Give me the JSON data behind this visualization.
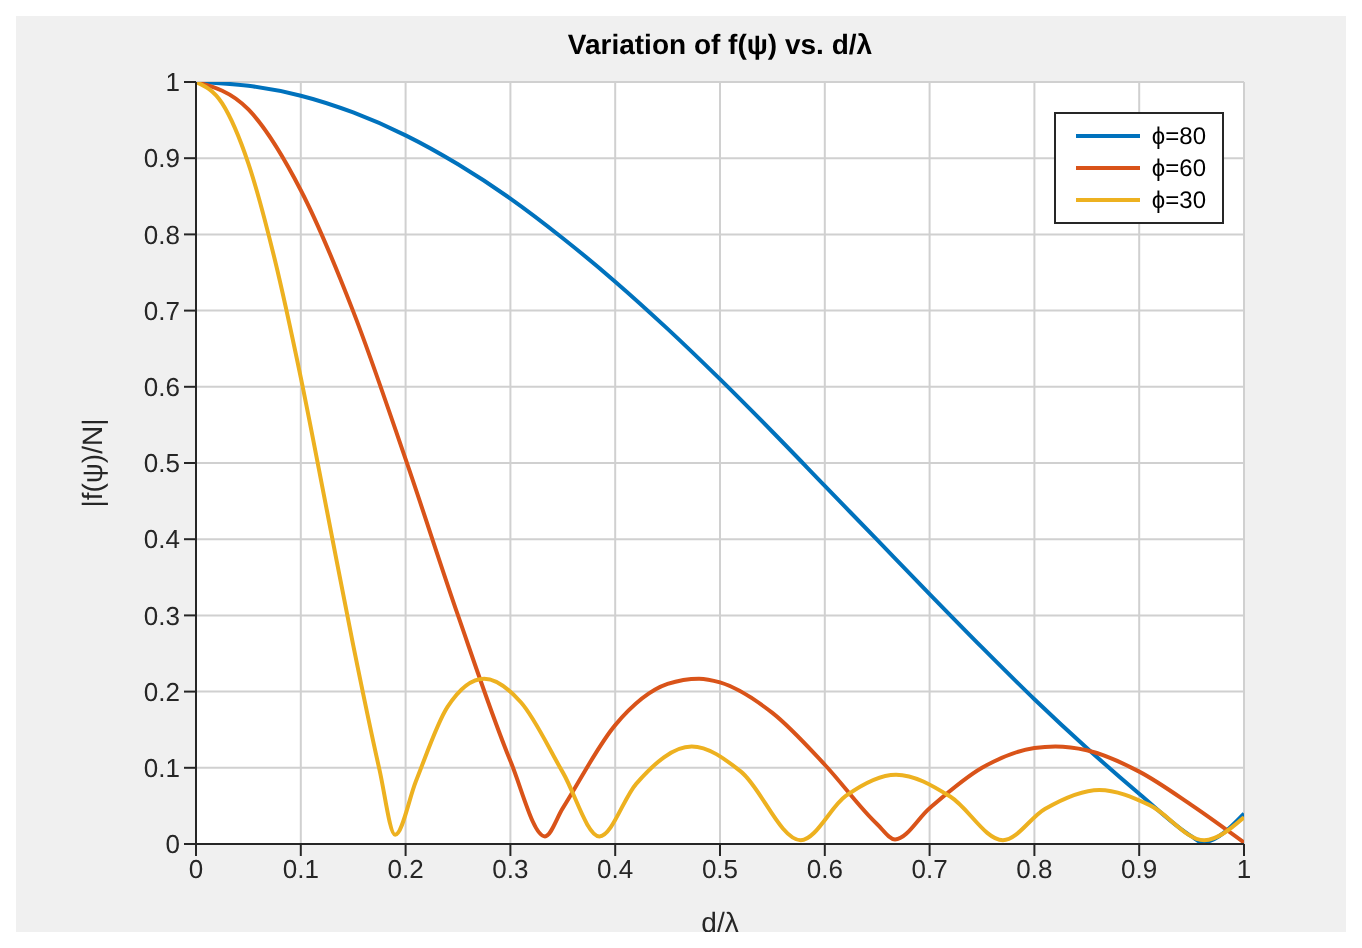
{
  "chart_data": {
    "type": "line",
    "title": "Variation of f(ψ) vs. d/λ",
    "xlabel": "d/λ",
    "ylabel": "|f(ψ)/N|",
    "xlim": [
      0,
      1
    ],
    "ylim": [
      0,
      1
    ],
    "xticks": [
      0,
      0.1,
      0.2,
      0.3,
      0.4,
      0.5,
      0.6,
      0.7,
      0.8,
      0.9,
      1
    ],
    "yticks": [
      0,
      0.1,
      0.2,
      0.3,
      0.4,
      0.5,
      0.6,
      0.7,
      0.8,
      0.9,
      1
    ],
    "grid": true,
    "legend": "top right",
    "marker": "none",
    "line_style": "solid",
    "series": [
      {
        "name": "ϕ=80",
        "color": "#0072bd",
        "x": [
          0,
          0.05,
          0.1,
          0.15,
          0.2,
          0.25,
          0.3,
          0.35,
          0.4,
          0.45,
          0.5,
          0.55,
          0.6,
          0.65,
          0.7,
          0.75,
          0.8,
          0.85,
          0.9,
          0.95,
          0.96,
          1
        ],
        "values": [
          1,
          0.995,
          0.982,
          0.96,
          0.93,
          0.892,
          0.847,
          0.795,
          0.738,
          0.676,
          0.61,
          0.541,
          0.47,
          0.399,
          0.328,
          0.258,
          0.19,
          0.126,
          0.066,
          0.01,
          0.002,
          0.04
        ]
      },
      {
        "name": "ϕ=60",
        "color": "#d95319",
        "x": [
          0,
          0.05,
          0.1,
          0.15,
          0.2,
          0.25,
          0.3,
          0.333,
          0.35,
          0.4,
          0.45,
          0.48,
          0.5,
          0.55,
          0.6,
          0.65,
          0.667,
          0.7,
          0.75,
          0.8,
          0.82,
          0.85,
          0.9,
          0.95,
          1
        ],
        "values": [
          1,
          0.964,
          0.858,
          0.699,
          0.505,
          0.3,
          0.109,
          0.01,
          0.047,
          0.156,
          0.21,
          0.217,
          0.212,
          0.172,
          0.104,
          0.026,
          0.006,
          0.047,
          0.1,
          0.126,
          0.128,
          0.123,
          0.095,
          0.051,
          0.002
        ]
      },
      {
        "name": "ϕ=30",
        "color": "#edb120",
        "x": [
          0,
          0.025,
          0.05,
          0.075,
          0.1,
          0.125,
          0.15,
          0.175,
          0.19,
          0.21,
          0.24,
          0.275,
          0.31,
          0.35,
          0.385,
          0.42,
          0.473,
          0.52,
          0.577,
          0.62,
          0.668,
          0.72,
          0.77,
          0.81,
          0.862,
          0.91,
          0.962,
          1
        ],
        "values": [
          1,
          0.972,
          0.893,
          0.768,
          0.612,
          0.437,
          0.261,
          0.098,
          0.012,
          0.083,
          0.18,
          0.217,
          0.186,
          0.094,
          0.01,
          0.079,
          0.128,
          0.095,
          0.005,
          0.063,
          0.091,
          0.062,
          0.005,
          0.046,
          0.071,
          0.051,
          0.005,
          0.035
        ]
      }
    ]
  }
}
